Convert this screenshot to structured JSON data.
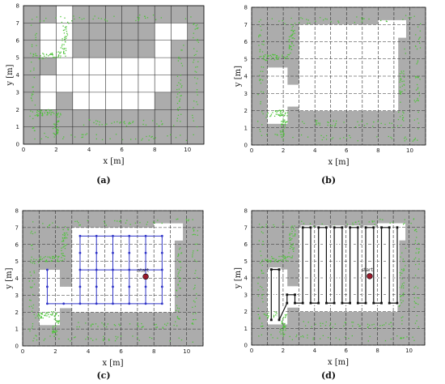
{
  "panels": [
    {
      "id": "a",
      "label": "(a)",
      "xlabel": "x [m]",
      "ylabel": "y [m]",
      "xticks": [
        "0",
        "2",
        "4",
        "6",
        "8",
        "10"
      ],
      "yticks": [
        "0",
        "1",
        "2",
        "3",
        "4",
        "5",
        "6",
        "7",
        "8"
      ],
      "grid_style": "solid",
      "start_label": "",
      "route": "none"
    },
    {
      "id": "b",
      "label": "(b)",
      "xlabel": "x [m]",
      "ylabel": "y [m]",
      "xticks": [
        "0",
        "2",
        "4",
        "6",
        "8",
        "10"
      ],
      "yticks": [
        "0",
        "1",
        "2",
        "3",
        "4",
        "5",
        "6",
        "7",
        "8"
      ],
      "grid_style": "dashed",
      "start_label": "",
      "route": "none"
    },
    {
      "id": "c",
      "label": "(c)",
      "xlabel": "x [m]",
      "ylabel": "y [m]",
      "xticks": [
        "0",
        "2",
        "4",
        "6",
        "8",
        "10"
      ],
      "yticks": [
        "0",
        "1",
        "2",
        "3",
        "4",
        "5",
        "6",
        "7",
        "8"
      ],
      "grid_style": "dashed",
      "start_label": "start",
      "route": "blue_graph"
    },
    {
      "id": "d",
      "label": "(d)",
      "xlabel": "x [m]",
      "ylabel": "y [m]",
      "xticks": [
        "0",
        "2",
        "4",
        "6",
        "8",
        "10"
      ],
      "yticks": [
        "0",
        "1",
        "2",
        "3",
        "4",
        "5",
        "6",
        "7",
        "8"
      ],
      "grid_style": "dashed",
      "start_label": "start",
      "route": "coverage_path"
    }
  ],
  "map": {
    "x_range": [
      0,
      11
    ],
    "y_range": [
      0,
      8
    ],
    "free_space_coarse": [
      [
        2,
        3,
        3,
        8
      ],
      [
        1,
        2,
        5,
        7
      ],
      [
        1,
        2,
        2,
        4
      ],
      [
        8,
        9,
        3,
        7
      ],
      [
        3,
        8,
        2,
        5
      ],
      [
        9,
        10,
        6,
        7
      ]
    ],
    "start_point": [
      7.5,
      4.1
    ]
  },
  "colors": {
    "occupied": "#acacac",
    "free": "#ffffff",
    "grid": "#2b2b2b",
    "laser_points": "#4ec33a",
    "graph_edges": "#2f34c8",
    "path": "#111111",
    "start_marker": "#9b1a2c"
  }
}
